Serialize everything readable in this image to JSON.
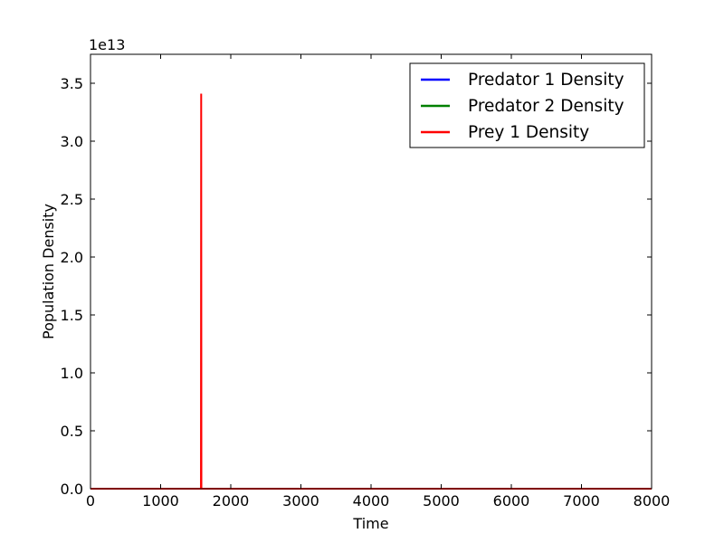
{
  "chart_data": {
    "type": "line",
    "title": "",
    "xlabel": "Time",
    "ylabel": "Population Density",
    "y_offset_label": "1e13",
    "y_scale": 10000000000000.0,
    "xlim": [
      0,
      8000
    ],
    "ylim": [
      0,
      37500000000000.0
    ],
    "x_ticks": [
      0,
      1000,
      2000,
      3000,
      4000,
      5000,
      6000,
      7000,
      8000
    ],
    "x_tick_labels": [
      "0",
      "1000",
      "2000",
      "3000",
      "4000",
      "5000",
      "6000",
      "7000",
      "8000"
    ],
    "y_ticks": [
      0,
      5000000000000.0,
      10000000000000.0,
      15000000000000.0,
      20000000000000.0,
      25000000000000.0,
      30000000000000.0,
      35000000000000.0
    ],
    "y_tick_labels": [
      "0.0",
      "0.5",
      "1.0",
      "1.5",
      "2.0",
      "2.5",
      "3.0",
      "3.5"
    ],
    "grid": false,
    "legend_position": "top-right",
    "series": [
      {
        "name": "Predator 1 Density",
        "color": "#0000ff",
        "x": [
          0,
          8000
        ],
        "y": [
          0,
          0
        ]
      },
      {
        "name": "Predator 2 Density",
        "color": "#008000",
        "x": [
          0,
          8000
        ],
        "y": [
          0,
          0
        ]
      },
      {
        "name": "Prey 1 Density",
        "color": "#ff0000",
        "x": [
          0,
          1575,
          1578,
          1581,
          8000
        ],
        "y": [
          0,
          0,
          34100000000000.0,
          0,
          0
        ]
      }
    ]
  }
}
